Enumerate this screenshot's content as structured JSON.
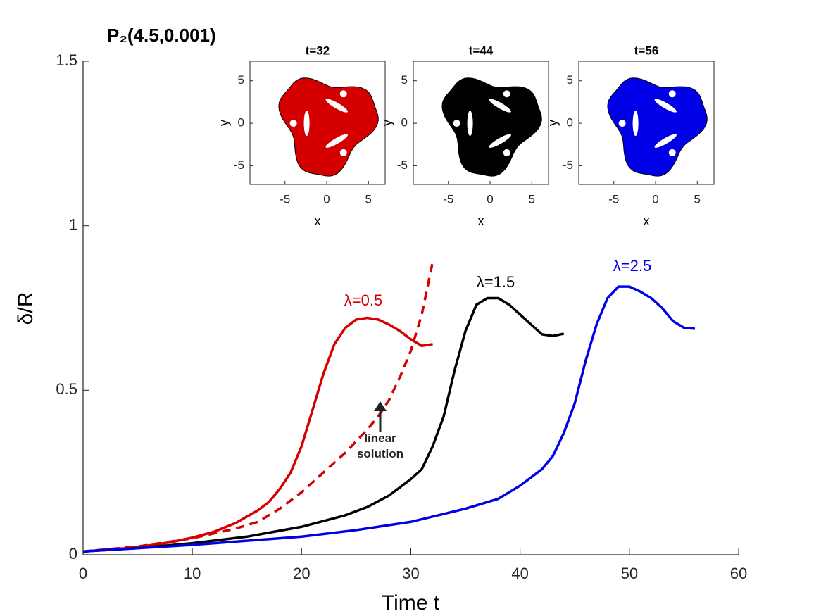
{
  "chart_data": {
    "type": "line",
    "title": "P₂(4.5,0.001)",
    "x_label": "Time t",
    "y_label": "δ/R",
    "xlim": [
      0,
      60
    ],
    "ylim": [
      0,
      1.5
    ],
    "xticks": [
      0,
      10,
      20,
      30,
      40,
      50,
      60
    ],
    "yticks": [
      0,
      0.5,
      1,
      1.5
    ],
    "series": [
      {
        "name": "λ=0.5",
        "color": "#d40000",
        "dash": false,
        "x": [
          0,
          2,
          4,
          6,
          8,
          10,
          12,
          14,
          16,
          17,
          18,
          19,
          20,
          21,
          22,
          23,
          24,
          25,
          26,
          27,
          28,
          29,
          30,
          31,
          32
        ],
        "values": [
          0.01,
          0.015,
          0.02,
          0.028,
          0.038,
          0.052,
          0.07,
          0.097,
          0.135,
          0.16,
          0.2,
          0.25,
          0.33,
          0.44,
          0.55,
          0.64,
          0.69,
          0.715,
          0.72,
          0.715,
          0.7,
          0.68,
          0.655,
          0.635,
          0.64
        ]
      },
      {
        "name": "linear solution",
        "color": "#d40000",
        "dash": true,
        "x": [
          0,
          5,
          10,
          14,
          16,
          18,
          20,
          22,
          24,
          26,
          27,
          28,
          29,
          30,
          31,
          32
        ],
        "values": [
          0.01,
          0.025,
          0.05,
          0.08,
          0.1,
          0.14,
          0.19,
          0.25,
          0.31,
          0.38,
          0.42,
          0.47,
          0.54,
          0.62,
          0.73,
          0.89
        ]
      },
      {
        "name": "λ=1.5",
        "color": "#000000",
        "dash": false,
        "x": [
          0,
          5,
          10,
          15,
          20,
          24,
          26,
          28,
          30,
          31,
          32,
          33,
          34,
          35,
          36,
          37,
          38,
          39,
          40,
          41,
          42,
          43,
          44
        ],
        "values": [
          0.01,
          0.02,
          0.035,
          0.055,
          0.085,
          0.12,
          0.145,
          0.18,
          0.23,
          0.26,
          0.33,
          0.42,
          0.56,
          0.68,
          0.76,
          0.78,
          0.78,
          0.76,
          0.73,
          0.7,
          0.67,
          0.665,
          0.672
        ]
      },
      {
        "name": "λ=2.5",
        "color": "#0000e6",
        "dash": false,
        "x": [
          0,
          10,
          20,
          25,
          30,
          35,
          38,
          40,
          42,
          43,
          44,
          45,
          46,
          47,
          48,
          49,
          50,
          51,
          52,
          53,
          54,
          55,
          56
        ],
        "values": [
          0.01,
          0.03,
          0.055,
          0.075,
          0.1,
          0.14,
          0.17,
          0.21,
          0.26,
          0.3,
          0.37,
          0.46,
          0.59,
          0.7,
          0.78,
          0.815,
          0.815,
          0.8,
          0.78,
          0.75,
          0.71,
          0.69,
          0.687
        ]
      }
    ],
    "insets": [
      {
        "title": "t=32",
        "fill": "#d40000"
      },
      {
        "title": "t=44",
        "fill": "#000000"
      },
      {
        "title": "t=56",
        "fill": "#0000e6"
      }
    ],
    "inset_axes": {
      "x_label": "x",
      "y_label": "y",
      "xlim": [
        -9.2,
        7
      ],
      "ylim": [
        -7.2,
        7.3
      ],
      "xticks": [
        -5,
        0,
        5
      ],
      "yticks": [
        -5,
        0,
        5
      ]
    }
  }
}
